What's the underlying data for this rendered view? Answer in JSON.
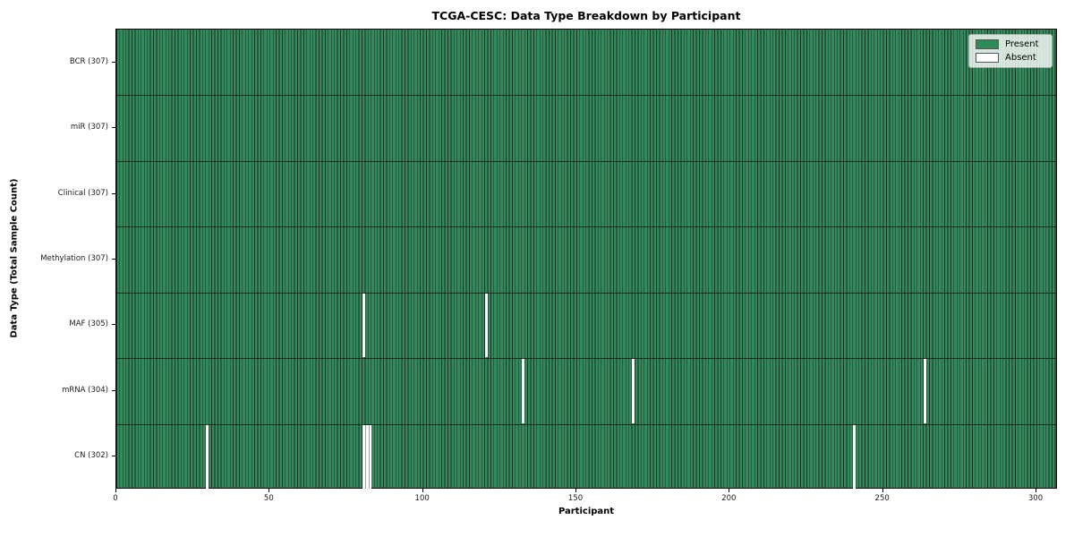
{
  "title": "TCGA-CESC: Data Type Breakdown by Participant",
  "chart_data": {
    "type": "heatmap",
    "title": "TCGA-CESC: Data Type Breakdown by Participant",
    "xlabel": "Participant",
    "ylabel": "Data Type (Total Sample Count)",
    "x_ticks": [
      0,
      50,
      100,
      150,
      200,
      250,
      300
    ],
    "x_range": [
      0,
      307
    ],
    "n_participants": 307,
    "grid": "row-separators",
    "rows": [
      {
        "data_type": "BCR",
        "label": "BCR (307)",
        "present_count": 307,
        "absent_count": 0,
        "absent_participants": []
      },
      {
        "data_type": "miR",
        "label": "miR (307)",
        "present_count": 307,
        "absent_count": 0,
        "absent_participants": []
      },
      {
        "data_type": "Clinical",
        "label": "Clinical (307)",
        "present_count": 307,
        "absent_count": 0,
        "absent_participants": []
      },
      {
        "data_type": "Methylation",
        "label": "Methylation (307)",
        "present_count": 307,
        "absent_count": 0,
        "absent_participants": []
      },
      {
        "data_type": "MAF",
        "label": "MAF (305)",
        "present_count": 305,
        "absent_count": 2,
        "absent_participants": [
          80,
          120
        ]
      },
      {
        "data_type": "mRNA",
        "label": "mRNA (304)",
        "present_count": 304,
        "absent_count": 3,
        "absent_participants": [
          132,
          168,
          263
        ]
      },
      {
        "data_type": "CN",
        "label": "CN (302)",
        "present_count": 302,
        "absent_count": 5,
        "absent_participants": [
          29,
          80,
          81,
          82,
          240
        ]
      }
    ],
    "legend": {
      "position": "upper right",
      "entries": [
        {
          "label": "Present",
          "color": "#2e8b57"
        },
        {
          "label": "Absent",
          "color": "#ffffff"
        }
      ]
    },
    "colors": {
      "present_fill": "#35895c",
      "absent_fill": "#ffffff",
      "bar_edge": "#14341f",
      "row_separator": "#0c1f14",
      "swatch_edge": "#555555"
    }
  }
}
